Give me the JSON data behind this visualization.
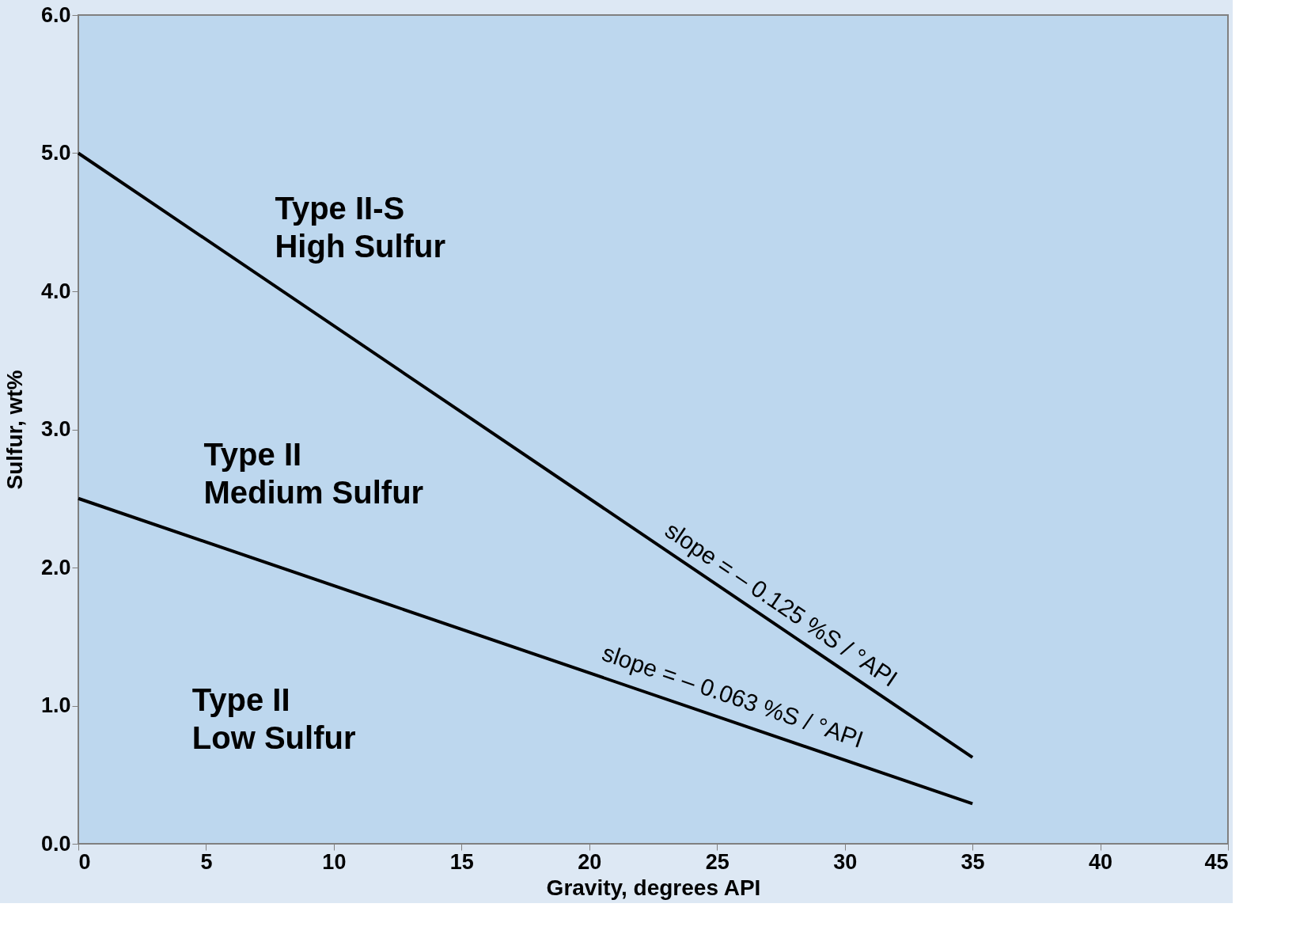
{
  "chart_data": {
    "type": "line",
    "xlabel": "Gravity, degrees API",
    "ylabel": "Sulfur, wt%",
    "xlim": [
      0,
      45
    ],
    "ylim": [
      0,
      6
    ],
    "xticks": [
      0,
      5,
      10,
      15,
      20,
      25,
      30,
      35,
      40,
      45
    ],
    "yticks": [
      {
        "value": 0,
        "label": "0.0"
      },
      {
        "value": 1,
        "label": "1.0"
      },
      {
        "value": 2,
        "label": "2.0"
      },
      {
        "value": 3,
        "label": "3.0"
      },
      {
        "value": 4,
        "label": "4.0"
      },
      {
        "value": 5,
        "label": "5.0"
      },
      {
        "value": 6,
        "label": "6.0"
      }
    ],
    "grid": false,
    "marker": "none",
    "line_style": "solid",
    "x": [
      0,
      35
    ],
    "series": [
      {
        "color": "#000000",
        "values": [
          5.0,
          0.625
        ]
      },
      {
        "color": "#000000",
        "values": [
          2.5,
          0.29
        ]
      }
    ],
    "annotations": [
      "Type II-S\nHigh Sulfur",
      "Type II\nMedium Sulfur",
      "Type II\nLow Sulfur",
      "slope = – 0.125 %S / °API",
      "slope = – 0.063 %S / °API"
    ]
  }
}
